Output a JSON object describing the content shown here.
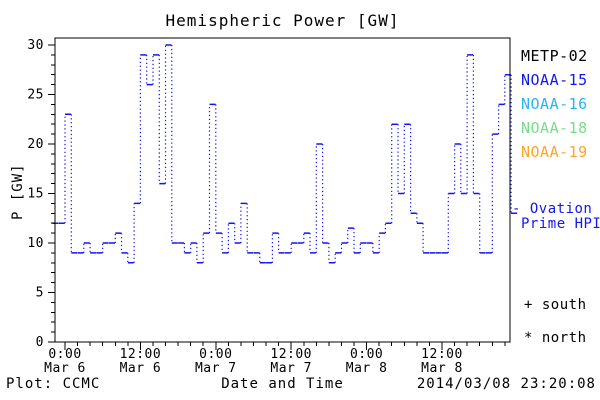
{
  "title": "Hemispheric Power [GW]",
  "y_axis": {
    "label": "P [GW]",
    "ticks": [
      0,
      5,
      10,
      15,
      20,
      25,
      30
    ],
    "minor_step": 1,
    "range": [
      0,
      30
    ]
  },
  "x_axis": {
    "label": "Date and Time",
    "major_ticks": [
      {
        "time": "0:00",
        "date": "Mar 6"
      },
      {
        "time": "12:00",
        "date": "Mar 6"
      },
      {
        "time": "0:00",
        "date": "Mar 7"
      },
      {
        "time": "12:00",
        "date": "Mar 7"
      },
      {
        "time": "0:00",
        "date": "Mar 8"
      },
      {
        "time": "12:00",
        "date": "Mar 8"
      }
    ],
    "minor_step_hours": 2
  },
  "legend": {
    "satellites": [
      {
        "name": "METP-02",
        "color": "#000000"
      },
      {
        "name": "NOAA-15",
        "color": "#1515f0"
      },
      {
        "name": "NOAA-16",
        "color": "#2ab4f0"
      },
      {
        "name": "NOAA-18",
        "color": "#77dd88"
      },
      {
        "name": "NOAA-19",
        "color": "#ffa428"
      }
    ],
    "south_marker": "+ south",
    "north_marker": "* north"
  },
  "ovation_label": {
    "line1": "- Ovation",
    "line2": "Prime HPI",
    "color": "#1515f0"
  },
  "footer": {
    "credit": "Plot: CCMC",
    "timestamp": "2014/03/08 23:20:08"
  },
  "chart_data": {
    "type": "line",
    "style": "step-dotted",
    "title": "Hemispheric Power [GW]",
    "xlabel": "Date and Time",
    "ylabel": "P [GW]",
    "ylim": [
      0,
      30
    ],
    "grid": false,
    "legend_position": "right",
    "line_color": "#1515f0",
    "series_name": "Ovation Prime HPI (NOAA-15)",
    "x_start": "2014-03-05 22:00",
    "x_step_hours": 1,
    "x_major_tick_hours": [
      2,
      14,
      26,
      38,
      50,
      62
    ],
    "x_major_tick_labels": [
      "0:00 Mar 6",
      "12:00 Mar 6",
      "0:00 Mar 7",
      "12:00 Mar 7",
      "0:00 Mar 8",
      "12:00 Mar 8"
    ],
    "values": [
      12,
      12,
      23,
      9,
      9,
      10,
      9,
      9,
      10,
      10,
      11,
      9,
      8,
      14,
      29,
      26,
      29,
      16,
      30,
      10,
      10,
      9,
      10,
      8,
      11,
      24,
      11,
      9,
      12,
      10,
      14,
      9,
      9,
      8,
      8,
      11,
      9,
      9,
      10,
      10,
      11,
      9,
      20,
      10,
      8,
      9,
      10,
      11.5,
      9,
      10,
      10,
      9,
      11,
      12,
      22,
      15,
      22,
      13,
      12,
      9,
      9,
      9,
      9,
      15,
      20,
      15,
      29,
      15,
      9,
      9,
      21,
      24,
      27,
      13
    ]
  }
}
